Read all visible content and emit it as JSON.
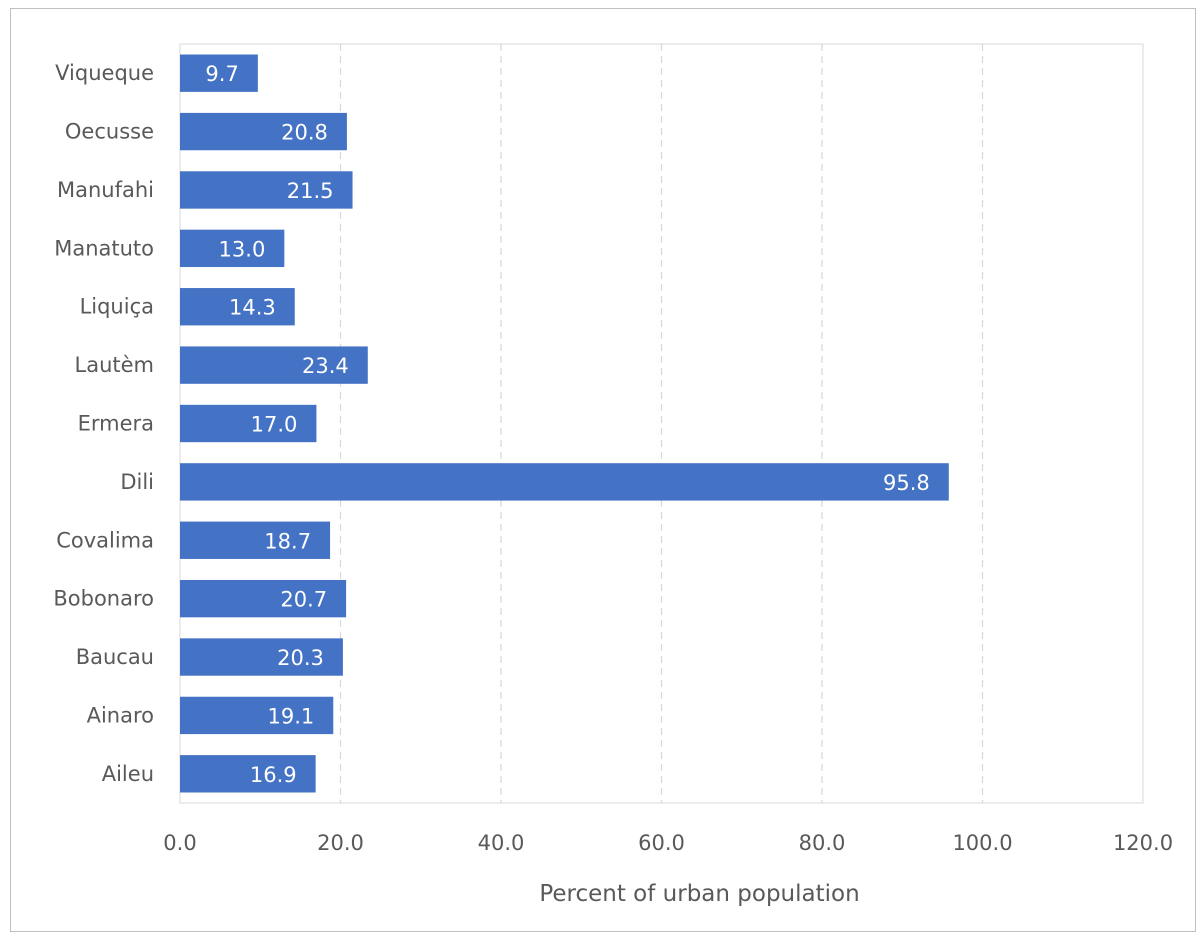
{
  "chart_data": {
    "type": "bar",
    "orientation": "horizontal",
    "categories": [
      "Viqueque",
      "Oecusse",
      "Manufahi",
      "Manatuto",
      "Liquiça",
      "Lautèm",
      "Ermera",
      "Dili",
      "Covalima",
      "Bobonaro",
      "Baucau",
      "Ainaro",
      "Aileu"
    ],
    "values": [
      9.7,
      20.8,
      21.5,
      13.0,
      14.3,
      23.4,
      17.0,
      95.8,
      18.7,
      20.7,
      20.3,
      19.1,
      16.9
    ],
    "data_labels": [
      "9.7",
      "20.8",
      "21.5",
      "13.0",
      "14.3",
      "23.4",
      "17.0",
      "95.8",
      "18.7",
      "20.7",
      "20.3",
      "19.1",
      "16.9"
    ],
    "xlabel": "Percent of urban population",
    "ylabel": "",
    "xlim": [
      0,
      120
    ],
    "x_ticks": [
      "0.0",
      "20.0",
      "40.0",
      "60.0",
      "80.0",
      "100.0",
      "120.0"
    ],
    "grid": "vertical dashed",
    "legend": "none",
    "bar_color": "#4472c4"
  }
}
